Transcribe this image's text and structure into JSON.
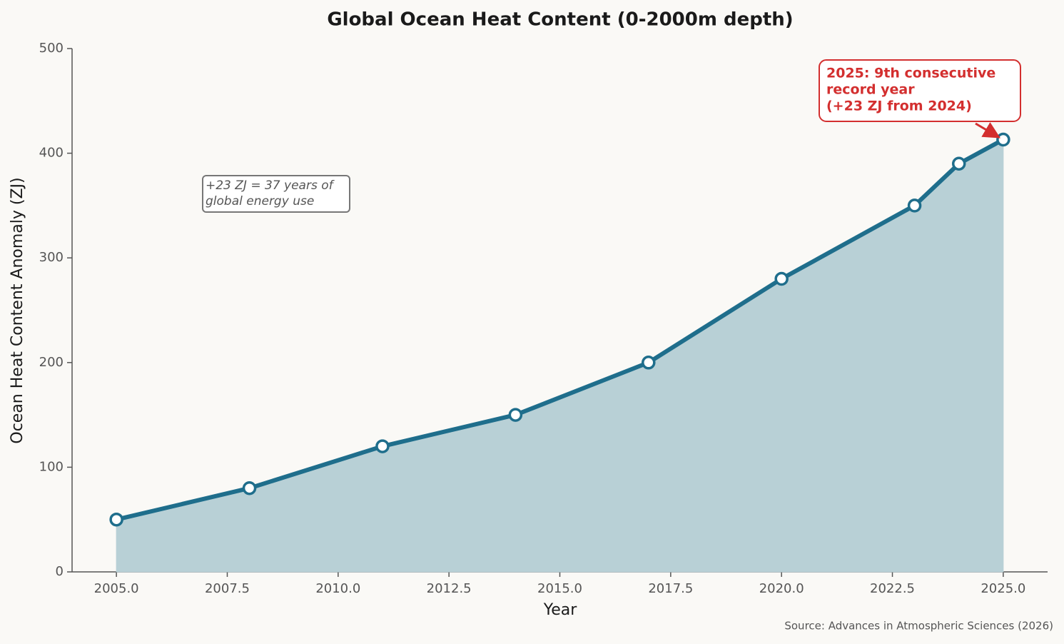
{
  "chart_data": {
    "type": "line",
    "title": "Global Ocean Heat Content (0-2000m depth)",
    "x_label": "Year",
    "y_label": "Ocean Heat Content Anomaly (ZJ)",
    "source": "Source: Advances in Atmospheric Sciences (2026)",
    "x": [
      2005,
      2008,
      2011,
      2014,
      2017,
      2020,
      2023,
      2024,
      2025
    ],
    "series": [
      {
        "name": "Ocean Heat Content",
        "color": "#1f6e8c",
        "fill": "#b8d0d6",
        "values": [
          50,
          80,
          120,
          150,
          200,
          280,
          350,
          390,
          413
        ]
      }
    ],
    "xlim": [
      2004,
      2026
    ],
    "xticks": [
      {
        "value": 2005,
        "label": "2005.0"
      },
      {
        "value": 2007.5,
        "label": "2007.5"
      },
      {
        "value": 2010,
        "label": "2010.0"
      },
      {
        "value": 2012.5,
        "label": "2012.5"
      },
      {
        "value": 2015,
        "label": "2015.0"
      },
      {
        "value": 2017.5,
        "label": "2017.5"
      },
      {
        "value": 2020,
        "label": "2020.0"
      },
      {
        "value": 2022.5,
        "label": "2022.5"
      },
      {
        "value": 2025,
        "label": "2025.0"
      }
    ],
    "ylim": [
      0,
      500
    ],
    "yticks": [
      0,
      100,
      200,
      300,
      400,
      500
    ],
    "grid": false,
    "annotations": [
      {
        "lines": [
          "2025: 9th consecutive",
          "record year",
          "(+23 ZJ from 2024)"
        ],
        "color": "#d32f2f"
      },
      {
        "lines": [
          "+23 ZJ = 37 years of",
          "global energy use"
        ],
        "color": "#555555"
      }
    ]
  }
}
